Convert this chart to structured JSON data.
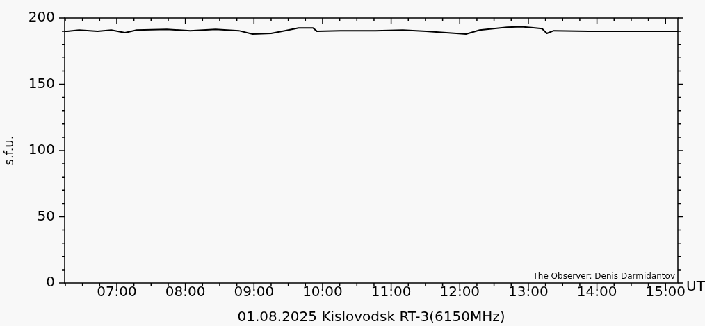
{
  "chart_data": {
    "type": "line",
    "xlabel": "01.08.2025 Kislovodsk RT-3(6150MHz)",
    "ylabel": "s.f.u.",
    "annotations": [
      "UT",
      "The Observer: Denis Darmidantov"
    ],
    "series": [
      {
        "color": "#000000",
        "x": [
          6.24,
          6.28,
          6.45,
          6.72,
          6.92,
          7.12,
          7.29,
          7.73,
          8.07,
          8.44,
          8.78,
          8.98,
          9.25,
          9.45,
          9.65,
          9.86,
          9.92,
          10.26,
          10.77,
          11.17,
          11.51,
          11.95,
          12.09,
          12.29,
          12.69,
          12.9,
          13.2,
          13.27,
          13.37,
          13.88,
          14.38,
          15.13,
          15.18
        ],
        "values": [
          190,
          190,
          191,
          190,
          191,
          189,
          191,
          191.5,
          190.5,
          191.5,
          190.5,
          188,
          188.5,
          190.5,
          192.5,
          192.5,
          190,
          190.5,
          190.5,
          191,
          190,
          188.5,
          188,
          191,
          193,
          193.5,
          192,
          188.5,
          190.5,
          190,
          190,
          190,
          190
        ]
      }
    ],
    "xlim": [
      6.24,
      15.18
    ],
    "xticks": [
      {
        "value": 7,
        "label": "07:00"
      },
      {
        "value": 8,
        "label": "08:00"
      },
      {
        "value": 9,
        "label": "09:00"
      },
      {
        "value": 10,
        "label": "10:00"
      },
      {
        "value": 11,
        "label": "11:00"
      },
      {
        "value": 12,
        "label": "12:00"
      },
      {
        "value": 13,
        "label": "13:00"
      },
      {
        "value": 14,
        "label": "14:00"
      },
      {
        "value": 15,
        "label": "15:00"
      }
    ],
    "ylim": [
      0,
      200
    ],
    "yticks": [
      0,
      50,
      100,
      150,
      200
    ],
    "grid": false,
    "legend": false,
    "marker": "none",
    "line_style": "solid"
  }
}
